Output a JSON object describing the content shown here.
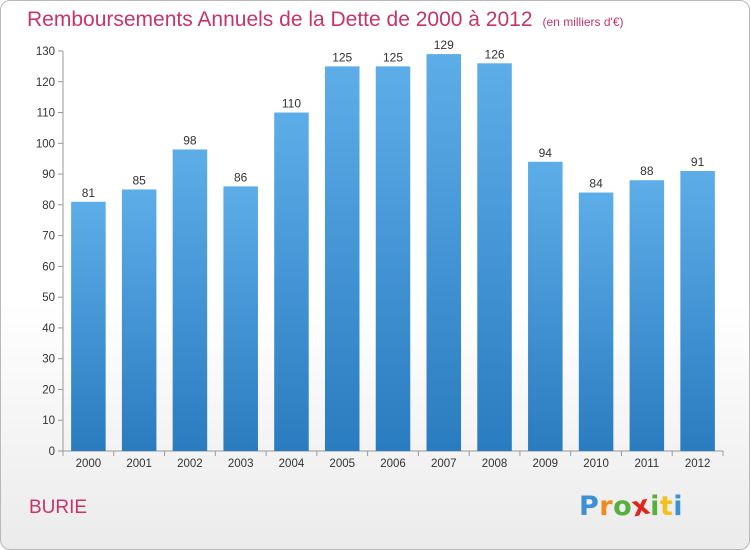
{
  "chart_data": {
    "type": "bar",
    "title": "Remboursements Annuels de la Dette de 2000 à 2012",
    "unit": "(en milliers d'€)",
    "categories": [
      "2000",
      "2001",
      "2002",
      "2003",
      "2004",
      "2005",
      "2006",
      "2007",
      "2008",
      "2009",
      "2010",
      "2011",
      "2012"
    ],
    "values": [
      81,
      85,
      98,
      86,
      110,
      125,
      125,
      129,
      126,
      94,
      84,
      88,
      91
    ],
    "ylim": [
      0,
      130
    ],
    "yticks": [
      0,
      10,
      20,
      30,
      40,
      50,
      60,
      70,
      80,
      90,
      100,
      110,
      120,
      130
    ],
    "grid": false,
    "legend": "none",
    "colors": {
      "bar_top": "#5dade8",
      "bar_bottom": "#2a7cc0",
      "title": "#c8346a"
    }
  },
  "footer": {
    "commune": "BURIE",
    "logo": {
      "letters": [
        "P",
        "r",
        "o",
        "x",
        "i",
        "t",
        "i"
      ],
      "colors": [
        "#3d8fd6",
        "#f08a1c",
        "#58b03c",
        "#e2241f",
        "#58b03c",
        "#f4c01c",
        "#3d8fd6"
      ]
    }
  }
}
